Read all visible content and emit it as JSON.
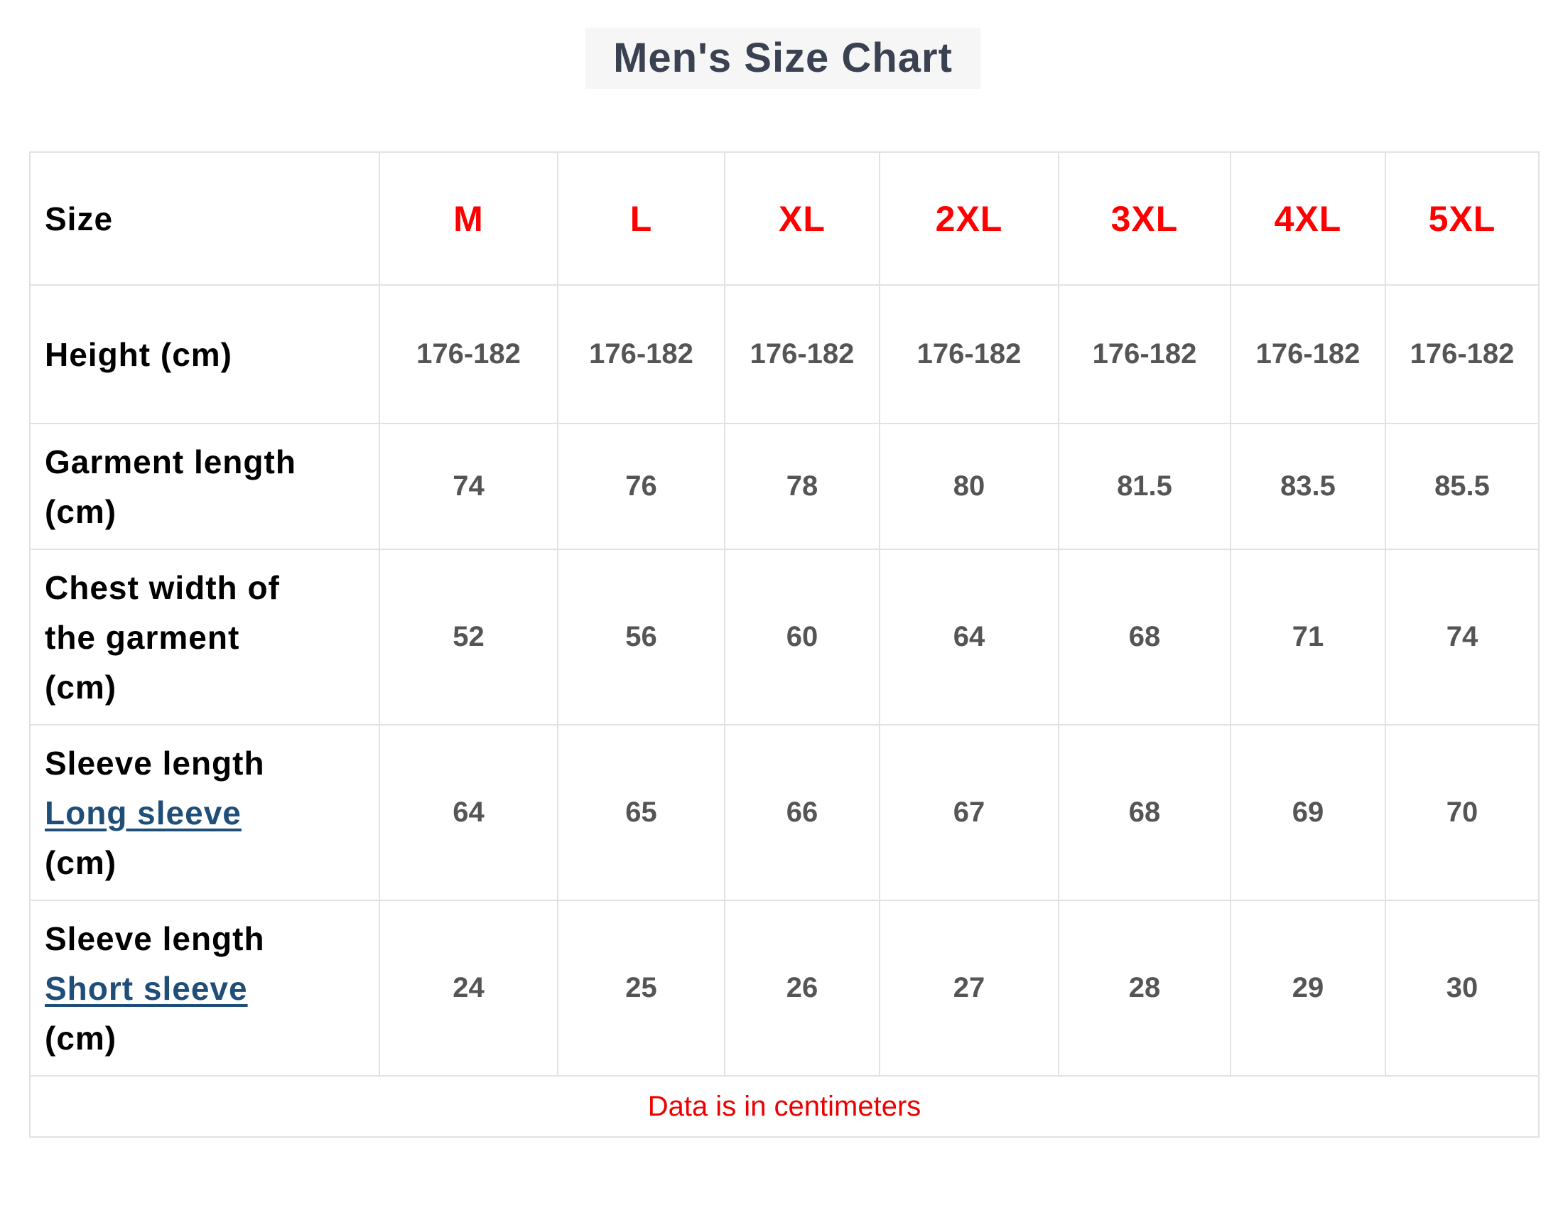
{
  "title": "Men's Size Chart",
  "table": {
    "header": {
      "label": "Size",
      "sizes": [
        "M",
        "L",
        "XL",
        "2XL",
        "3XL",
        "4XL",
        "5XL"
      ]
    },
    "rows": [
      {
        "label_lines": [
          "Height (cm)"
        ],
        "values": [
          "176-182",
          "176-182",
          "176-182",
          "176-182",
          "176-182",
          "176-182",
          "176-182"
        ]
      },
      {
        "label_lines": [
          "Garment length",
          "(cm)"
        ],
        "values": [
          "74",
          "76",
          "78",
          "80",
          "81.5",
          "83.5",
          "85.5"
        ]
      },
      {
        "label_lines": [
          "Chest width of",
          "the garment",
          "(cm)"
        ],
        "values": [
          "52",
          "56",
          "60",
          "64",
          "68",
          "71",
          "74"
        ]
      },
      {
        "label_lines": [
          "Sleeve length"
        ],
        "link": "Long sleeve",
        "label_suffix": "(cm)",
        "values": [
          "64",
          "65",
          "66",
          "67",
          "68",
          "69",
          "70"
        ]
      },
      {
        "label_lines": [
          "Sleeve length"
        ],
        "link": "Short sleeve",
        "label_suffix": "(cm)",
        "values": [
          "24",
          "25",
          "26",
          "27",
          "28",
          "29",
          "30"
        ]
      }
    ],
    "footer": "Data is in centimeters"
  },
  "colors": {
    "size_header": "#ff0000",
    "link": "#1f4e79",
    "footer": "#ee0000",
    "title": "#3a4150"
  }
}
